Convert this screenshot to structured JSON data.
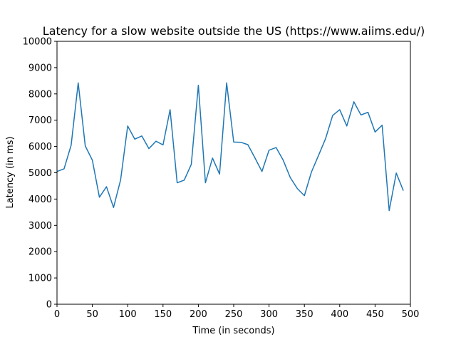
{
  "chart_data": {
    "type": "line",
    "title": "Latency for a slow website outside the US (https://www.aiims.edu/)",
    "xlabel": "Time (in seconds)",
    "ylabel": "Latency (in ms)",
    "xlim": [
      0,
      500
    ],
    "ylim": [
      0,
      10000
    ],
    "xticks": [
      0,
      50,
      100,
      150,
      200,
      250,
      300,
      350,
      400,
      450,
      500
    ],
    "yticks": [
      0,
      1000,
      2000,
      3000,
      4000,
      5000,
      6000,
      7000,
      8000,
      9000,
      10000
    ],
    "grid": false,
    "legend": "none",
    "series": [
      {
        "color": "#1f77b4",
        "x": [
          0,
          10,
          20,
          30,
          40,
          50,
          60,
          70,
          80,
          90,
          100,
          110,
          120,
          130,
          140,
          150,
          160,
          170,
          180,
          190,
          200,
          210,
          220,
          230,
          240,
          250,
          260,
          270,
          280,
          290,
          300,
          310,
          320,
          330,
          340,
          350,
          360,
          370,
          380,
          390,
          400,
          410,
          420,
          430,
          440,
          450,
          460,
          470,
          480,
          490
        ],
        "y": [
          5050,
          5150,
          6050,
          8420,
          6020,
          5480,
          4070,
          4470,
          3680,
          4730,
          6780,
          6280,
          6400,
          5920,
          6200,
          6060,
          7400,
          4620,
          4720,
          5320,
          8330,
          4620,
          5560,
          4950,
          8420,
          6170,
          6160,
          6070,
          5570,
          5050,
          5860,
          5960,
          5480,
          4820,
          4400,
          4130,
          5030,
          5660,
          6300,
          7180,
          7400,
          6780,
          7700,
          7200,
          7300,
          6550,
          6810,
          3560,
          4990,
          4320
        ]
      }
    ]
  }
}
